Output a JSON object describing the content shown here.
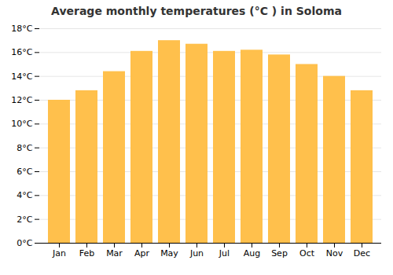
{
  "chart_data": {
    "type": "bar",
    "title": "Average monthly temperatures (°C ) in Soloma",
    "categories": [
      "Jan",
      "Feb",
      "Mar",
      "Apr",
      "May",
      "Jun",
      "Jul",
      "Aug",
      "Sep",
      "Oct",
      "Nov",
      "Dec"
    ],
    "values": [
      12.0,
      12.8,
      14.4,
      16.1,
      17.0,
      16.7,
      16.1,
      16.2,
      15.8,
      15.0,
      14.0,
      12.8
    ],
    "color": "#FFC04C",
    "ylim": [
      0,
      18
    ],
    "yticks": [
      {
        "value": 0,
        "label": "0°C"
      },
      {
        "value": 2,
        "label": "2°C"
      },
      {
        "value": 4,
        "label": "4°C"
      },
      {
        "value": 6,
        "label": "6°C"
      },
      {
        "value": 8,
        "label": "8°C"
      },
      {
        "value": 10,
        "label": "10°C"
      },
      {
        "value": 12,
        "label": "12°C"
      },
      {
        "value": 14,
        "label": "14°C"
      },
      {
        "value": 16,
        "label": "16°C"
      },
      {
        "value": 18,
        "label": "18°C"
      }
    ],
    "grid": true
  }
}
